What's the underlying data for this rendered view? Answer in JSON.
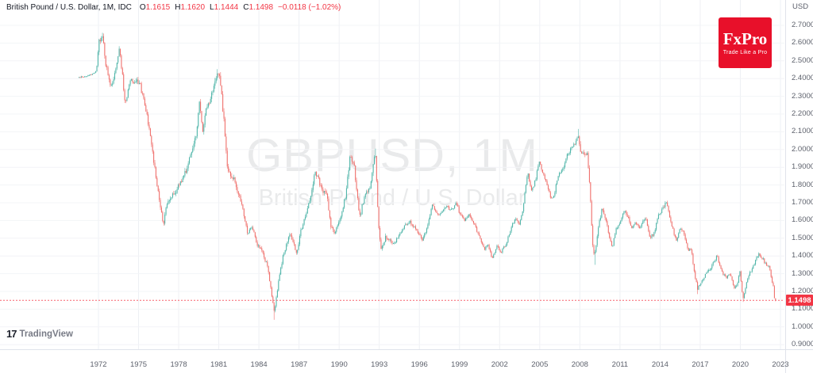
{
  "header": {
    "symbol_title": "British Pound / U.S. Dollar, 1M, IDC",
    "ohlc": [
      {
        "label": "O",
        "value": "1.1615"
      },
      {
        "label": "H",
        "value": "1.1620"
      },
      {
        "label": "L",
        "value": "1.1444"
      },
      {
        "label": "C",
        "value": "1.1498"
      }
    ],
    "change": "−0.0118 (−1.02%)"
  },
  "watermark": {
    "title": "GBPUSD, 1M",
    "subtitle": "British Pound / U.S. Dollar"
  },
  "logo": {
    "brand": "FxPro",
    "tagline": "Trade Like a Pro",
    "bg_color": "#e8102a"
  },
  "footer_logo": {
    "mark": "17",
    "text": "TradingView"
  },
  "price_axis": {
    "unit_label": "USD",
    "ticks": [
      {
        "label": "2.7000",
        "value": 2.7
      },
      {
        "label": "2.6000",
        "value": 2.6
      },
      {
        "label": "2.5000",
        "value": 2.5
      },
      {
        "label": "2.4000",
        "value": 2.4
      },
      {
        "label": "2.3000",
        "value": 2.3
      },
      {
        "label": "2.2000",
        "value": 2.2
      },
      {
        "label": "2.1000",
        "value": 2.1
      },
      {
        "label": "2.0000",
        "value": 2.0
      },
      {
        "label": "1.9000",
        "value": 1.9
      },
      {
        "label": "1.8000",
        "value": 1.8
      },
      {
        "label": "1.7000",
        "value": 1.7
      },
      {
        "label": "1.6000",
        "value": 1.6
      },
      {
        "label": "1.5000",
        "value": 1.5
      },
      {
        "label": "1.4000",
        "value": 1.4
      },
      {
        "label": "1.3000",
        "value": 1.3
      },
      {
        "label": "1.2000",
        "value": 1.2
      },
      {
        "label": "1.1000",
        "value": 1.1
      },
      {
        "label": "1.0000",
        "value": 1.0
      },
      {
        "label": "0.9000",
        "value": 0.9
      }
    ],
    "last_price_tag": {
      "value": "1.1498",
      "color": "#f23645"
    }
  },
  "time_axis": {
    "ticks": [
      {
        "label": "1972",
        "year": 1972
      },
      {
        "label": "1975",
        "year": 1975
      },
      {
        "label": "1978",
        "year": 1978
      },
      {
        "label": "1981",
        "year": 1981
      },
      {
        "label": "1984",
        "year": 1984
      },
      {
        "label": "1987",
        "year": 1987
      },
      {
        "label": "1990",
        "year": 1990
      },
      {
        "label": "1993",
        "year": 1993
      },
      {
        "label": "1996",
        "year": 1996
      },
      {
        "label": "1999",
        "year": 1999
      },
      {
        "label": "2002",
        "year": 2002
      },
      {
        "label": "2005",
        "year": 2005
      },
      {
        "label": "2008",
        "year": 2008
      },
      {
        "label": "2011",
        "year": 2011
      },
      {
        "label": "2014",
        "year": 2014
      },
      {
        "label": "2017",
        "year": 2017
      },
      {
        "label": "2020",
        "year": 2020
      },
      {
        "label": "2023",
        "year": 2023
      }
    ]
  },
  "chart_data": {
    "type": "candlestick",
    "symbol": "GBPUSD",
    "timeframe": "1M",
    "title": "GBPUSD, 1M",
    "x_range": {
      "first_candle_year": 1970.55,
      "last_candle_year": 2022.667,
      "axis_end_year": 2023.4
    },
    "y_range": {
      "visible_min": 0.87,
      "visible_max": 2.84
    },
    "grid": true,
    "up_color": "#50b5a9",
    "down_color": "#ef716d",
    "price_line": {
      "value": 1.1498,
      "style": "dashed",
      "color": "#f7626d"
    },
    "last_candle": {
      "open": 1.1615,
      "high": 1.162,
      "low": 1.1444,
      "close": 1.1498
    },
    "anchors": [
      [
        1970.45,
        2.405
      ],
      [
        1971.4,
        2.42
      ],
      [
        1971.85,
        2.44
      ],
      [
        1972.0,
        2.6
      ],
      [
        1972.3,
        2.65
      ],
      [
        1972.55,
        2.48
      ],
      [
        1972.9,
        2.35
      ],
      [
        1973.2,
        2.42
      ],
      [
        1973.55,
        2.58
      ],
      [
        1973.8,
        2.41
      ],
      [
        1974.0,
        2.26
      ],
      [
        1974.4,
        2.4
      ],
      [
        1975.1,
        2.37
      ],
      [
        1975.6,
        2.2
      ],
      [
        1976.0,
        2.02
      ],
      [
        1976.3,
        1.84
      ],
      [
        1976.6,
        1.7
      ],
      [
        1976.85,
        1.58
      ],
      [
        1977.2,
        1.72
      ],
      [
        1977.7,
        1.745
      ],
      [
        1978.1,
        1.82
      ],
      [
        1978.4,
        1.85
      ],
      [
        1978.7,
        1.92
      ],
      [
        1979.0,
        2.0
      ],
      [
        1979.3,
        2.08
      ],
      [
        1979.55,
        2.26
      ],
      [
        1979.8,
        2.1
      ],
      [
        1980.0,
        2.22
      ],
      [
        1980.4,
        2.28
      ],
      [
        1980.85,
        2.44
      ],
      [
        1981.1,
        2.4
      ],
      [
        1981.4,
        2.15
      ],
      [
        1981.6,
        1.92
      ],
      [
        1981.9,
        1.85
      ],
      [
        1982.2,
        1.82
      ],
      [
        1982.6,
        1.73
      ],
      [
        1983.0,
        1.585
      ],
      [
        1983.15,
        1.52
      ],
      [
        1983.5,
        1.57
      ],
      [
        1983.9,
        1.46
      ],
      [
        1984.3,
        1.42
      ],
      [
        1984.7,
        1.32
      ],
      [
        1984.95,
        1.18
      ],
      [
        1985.15,
        1.085
      ],
      [
        1985.45,
        1.25
      ],
      [
        1985.8,
        1.4
      ],
      [
        1986.1,
        1.47
      ],
      [
        1986.3,
        1.52
      ],
      [
        1986.6,
        1.47
      ],
      [
        1986.8,
        1.41
      ],
      [
        1987.1,
        1.53
      ],
      [
        1987.5,
        1.63
      ],
      [
        1987.9,
        1.75
      ],
      [
        1988.2,
        1.87
      ],
      [
        1988.5,
        1.82
      ],
      [
        1988.8,
        1.77
      ],
      [
        1989.1,
        1.74
      ],
      [
        1989.4,
        1.56
      ],
      [
        1989.65,
        1.53
      ],
      [
        1989.9,
        1.58
      ],
      [
        1990.2,
        1.64
      ],
      [
        1990.5,
        1.75
      ],
      [
        1990.8,
        1.95
      ],
      [
        1991.1,
        1.92
      ],
      [
        1991.3,
        1.77
      ],
      [
        1991.55,
        1.62
      ],
      [
        1991.9,
        1.74
      ],
      [
        1992.2,
        1.76
      ],
      [
        1992.45,
        1.85
      ],
      [
        1992.7,
        1.98
      ],
      [
        1992.95,
        1.56
      ],
      [
        1993.15,
        1.44
      ],
      [
        1993.5,
        1.51
      ],
      [
        1993.8,
        1.49
      ],
      [
        1994.1,
        1.465
      ],
      [
        1994.5,
        1.52
      ],
      [
        1994.9,
        1.57
      ],
      [
        1995.3,
        1.59
      ],
      [
        1995.7,
        1.555
      ],
      [
        1996.0,
        1.52
      ],
      [
        1996.2,
        1.49
      ],
      [
        1996.6,
        1.56
      ],
      [
        1996.95,
        1.69
      ],
      [
        1997.3,
        1.635
      ],
      [
        1997.6,
        1.63
      ],
      [
        1997.95,
        1.68
      ],
      [
        1998.4,
        1.66
      ],
      [
        1998.75,
        1.7
      ],
      [
        1999.0,
        1.645
      ],
      [
        1999.4,
        1.6
      ],
      [
        1999.75,
        1.635
      ],
      [
        2000.1,
        1.58
      ],
      [
        2000.5,
        1.5
      ],
      [
        2000.9,
        1.44
      ],
      [
        2001.1,
        1.47
      ],
      [
        2001.45,
        1.38
      ],
      [
        2001.8,
        1.455
      ],
      [
        2002.1,
        1.42
      ],
      [
        2002.5,
        1.47
      ],
      [
        2002.9,
        1.57
      ],
      [
        2003.2,
        1.61
      ],
      [
        2003.45,
        1.58
      ],
      [
        2003.7,
        1.65
      ],
      [
        2004.1,
        1.865
      ],
      [
        2004.4,
        1.77
      ],
      [
        2004.7,
        1.83
      ],
      [
        2004.95,
        1.935
      ],
      [
        2005.25,
        1.87
      ],
      [
        2005.55,
        1.8
      ],
      [
        2005.85,
        1.715
      ],
      [
        2006.1,
        1.755
      ],
      [
        2006.4,
        1.86
      ],
      [
        2006.7,
        1.88
      ],
      [
        2006.95,
        1.955
      ],
      [
        2007.3,
        1.995
      ],
      [
        2007.6,
        2.03
      ],
      [
        2007.85,
        2.085
      ],
      [
        2008.1,
        1.96
      ],
      [
        2008.3,
        1.99
      ],
      [
        2008.55,
        1.97
      ],
      [
        2008.75,
        1.78
      ],
      [
        2008.95,
        1.47
      ],
      [
        2009.1,
        1.4
      ],
      [
        2009.4,
        1.58
      ],
      [
        2009.65,
        1.66
      ],
      [
        2009.95,
        1.615
      ],
      [
        2010.2,
        1.51
      ],
      [
        2010.4,
        1.445
      ],
      [
        2010.7,
        1.545
      ],
      [
        2010.95,
        1.585
      ],
      [
        2011.15,
        1.61
      ],
      [
        2011.35,
        1.665
      ],
      [
        2011.65,
        1.61
      ],
      [
        2011.9,
        1.555
      ],
      [
        2012.2,
        1.59
      ],
      [
        2012.45,
        1.555
      ],
      [
        2012.75,
        1.61
      ],
      [
        2012.95,
        1.615
      ],
      [
        2013.2,
        1.5
      ],
      [
        2013.55,
        1.53
      ],
      [
        2013.9,
        1.635
      ],
      [
        2014.2,
        1.665
      ],
      [
        2014.5,
        1.705
      ],
      [
        2014.85,
        1.57
      ],
      [
        2015.1,
        1.515
      ],
      [
        2015.25,
        1.48
      ],
      [
        2015.5,
        1.57
      ],
      [
        2015.8,
        1.52
      ],
      [
        2016.05,
        1.44
      ],
      [
        2016.35,
        1.43
      ],
      [
        2016.5,
        1.33
      ],
      [
        2016.8,
        1.215
      ],
      [
        2017.0,
        1.245
      ],
      [
        2017.35,
        1.29
      ],
      [
        2017.7,
        1.32
      ],
      [
        2017.95,
        1.355
      ],
      [
        2018.25,
        1.4
      ],
      [
        2018.6,
        1.31
      ],
      [
        2018.95,
        1.275
      ],
      [
        2019.2,
        1.305
      ],
      [
        2019.55,
        1.22
      ],
      [
        2019.75,
        1.23
      ],
      [
        2019.95,
        1.32
      ],
      [
        2020.2,
        1.16
      ],
      [
        2020.45,
        1.24
      ],
      [
        2020.7,
        1.3
      ],
      [
        2020.95,
        1.34
      ],
      [
        2021.2,
        1.39
      ],
      [
        2021.4,
        1.415
      ],
      [
        2021.7,
        1.38
      ],
      [
        2021.95,
        1.35
      ],
      [
        2022.15,
        1.34
      ],
      [
        2022.35,
        1.26
      ],
      [
        2022.5,
        1.22
      ],
      [
        2022.62,
        1.162
      ]
    ],
    "spikes": [
      {
        "t": 1972.3,
        "high": 2.658
      },
      {
        "t": 1980.85,
        "high": 2.453
      },
      {
        "t": 1985.15,
        "low": 1.04
      },
      {
        "t": 1992.7,
        "high": 2.005
      },
      {
        "t": 2007.85,
        "high": 2.116
      },
      {
        "t": 2009.1,
        "low": 1.35
      },
      {
        "t": 2016.8,
        "low": 1.185
      },
      {
        "t": 2020.2,
        "low": 1.141
      }
    ]
  }
}
